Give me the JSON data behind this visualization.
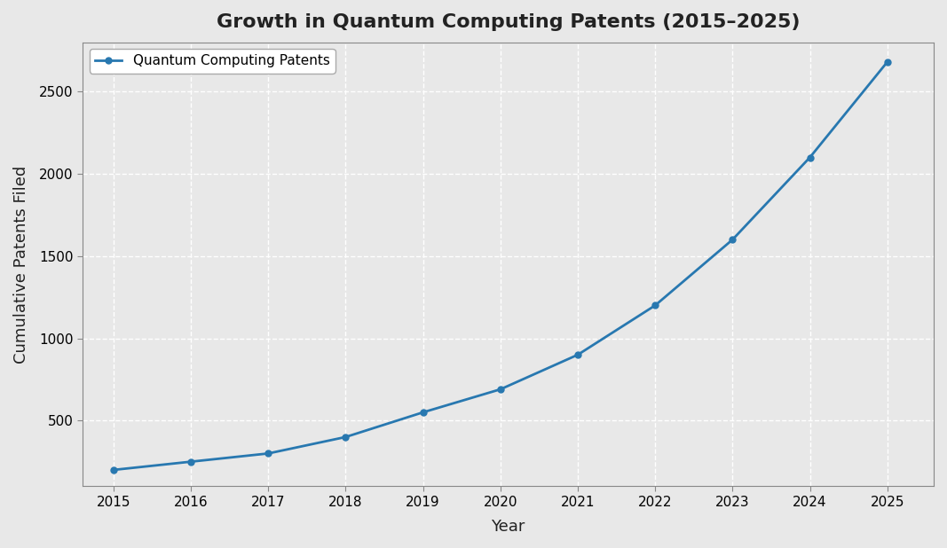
{
  "title": "Growth in Quantum Computing Patents (2015–2025)",
  "xlabel": "Year",
  "ylabel": "Cumulative Patents Filed",
  "legend_label": "Quantum Computing Patents",
  "years": [
    2015,
    2016,
    2017,
    2018,
    2019,
    2020,
    2021,
    2022,
    2023,
    2024,
    2025
  ],
  "patents": [
    200,
    250,
    300,
    400,
    550,
    690,
    900,
    1200,
    1600,
    2100,
    2680
  ],
  "line_color": "#2878b0",
  "marker": "o",
  "marker_size": 5,
  "linewidth": 2.0,
  "background_color": "#e8e8e8",
  "plot_bg_color": "#e8e8e8",
  "grid_color": "#ffffff",
  "grid_linestyle": "--",
  "grid_linewidth": 1.0,
  "ylim": [
    100,
    2800
  ],
  "xlim": [
    2014.6,
    2025.6
  ],
  "yticks": [
    500,
    1000,
    1500,
    2000,
    2500
  ],
  "title_fontsize": 16,
  "axis_label_fontsize": 13,
  "tick_fontsize": 11,
  "legend_fontsize": 11
}
